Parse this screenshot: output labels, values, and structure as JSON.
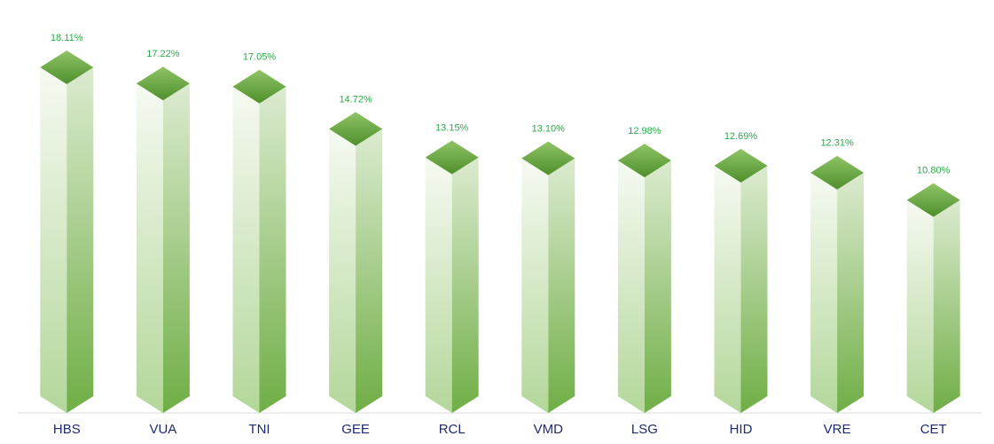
{
  "chart_data": {
    "type": "bar",
    "categories": [
      "HBS",
      "VUA",
      "TNI",
      "GEE",
      "RCL",
      "VMD",
      "LSG",
      "HID",
      "VRE",
      "CET"
    ],
    "values": [
      18.11,
      17.22,
      17.05,
      14.72,
      13.15,
      13.1,
      12.98,
      12.69,
      12.31,
      10.8
    ],
    "value_labels": [
      "18.11%",
      "17.22%",
      "17.05%",
      "14.72%",
      "13.15%",
      "13.10%",
      "12.98%",
      "12.69%",
      "12.31%",
      "10.80%"
    ],
    "color": "#70ad47"
  }
}
